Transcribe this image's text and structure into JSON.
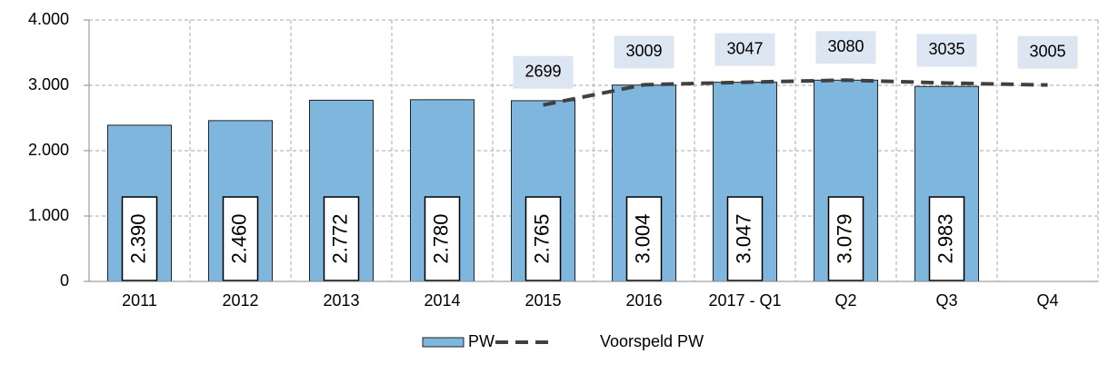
{
  "chart_data": {
    "type": "bar",
    "categories": [
      "2011",
      "2012",
      "2013",
      "2014",
      "2015",
      "2016",
      "2017 - Q1",
      "Q2",
      "Q3",
      "Q4"
    ],
    "series": [
      {
        "name": "PW",
        "type": "bar",
        "color": "#7fb6dd",
        "values": [
          2390,
          2460,
          2772,
          2780,
          2765,
          3004,
          3047,
          3079,
          2983,
          null
        ],
        "value_labels": [
          "2.390",
          "2.460",
          "2.772",
          "2.780",
          "2.765",
          "3.004",
          "3.047",
          "3.079",
          "2.983",
          null
        ]
      },
      {
        "name": "Voorspeld PW",
        "type": "line",
        "color": "#404040",
        "values": [
          null,
          null,
          null,
          null,
          2699,
          3009,
          3047,
          3080,
          3035,
          3005
        ]
      }
    ],
    "ylim": [
      0,
      4000
    ],
    "yticks": [
      0,
      {
        "value": 1000,
        "label": "1.000"
      },
      {
        "value": 2000,
        "label": "2.000"
      },
      {
        "value": 3000,
        "label": "3.000"
      },
      {
        "value": 4000,
        "label": "4.000"
      }
    ],
    "grid": true,
    "legend": "bottom"
  }
}
